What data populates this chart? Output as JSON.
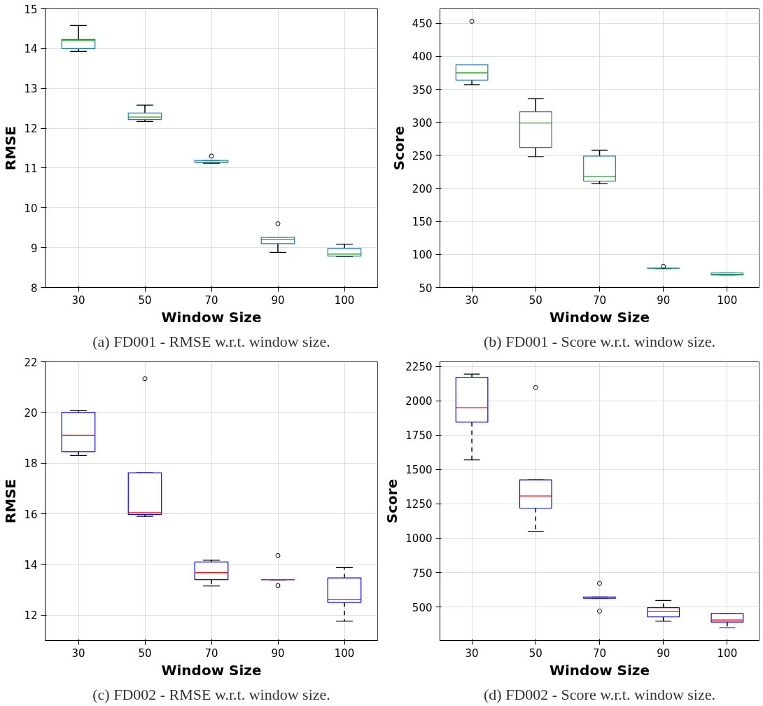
{
  "chart_data": [
    {
      "type": "box",
      "categories": [
        "30",
        "50",
        "70",
        "90",
        "100"
      ],
      "xlabel": "Window Size",
      "ylabel": "RMSE",
      "ylim": [
        8,
        15
      ],
      "yticks": [
        8,
        9,
        10,
        11,
        12,
        13,
        14,
        15
      ],
      "grid": true,
      "line_style": "solid",
      "annotations": [
        "(a) FD001 - RMSE w.r.t. window size."
      ],
      "series": [
        {
          "color": "#1f77b4",
          "boxes": [
            {
              "low": 13.93,
              "q1": 14.0,
              "median": 14.2,
              "q3": 14.23,
              "high": 14.58
            },
            {
              "low": 12.17,
              "q1": 12.22,
              "median": 12.28,
              "q3": 12.38,
              "high": 12.58
            },
            {
              "low": 11.12,
              "q1": 11.14,
              "median": 11.15,
              "q3": 11.19,
              "high": 11.19,
              "outliers": [
                11.3
              ]
            },
            {
              "low": 8.88,
              "q1": 9.1,
              "median": 9.21,
              "q3": 9.26,
              "high": 9.26,
              "outliers": [
                9.6
              ]
            },
            {
              "low": 8.78,
              "q1": 8.79,
              "median": 8.84,
              "q3": 8.98,
              "high": 9.09
            }
          ]
        }
      ]
    },
    {
      "type": "box",
      "categories": [
        "30",
        "50",
        "70",
        "90",
        "100"
      ],
      "xlabel": "Window Size",
      "ylabel": "Score",
      "ylim": [
        50,
        472
      ],
      "yticks": [
        50,
        100,
        150,
        200,
        250,
        300,
        350,
        400,
        450
      ],
      "grid": true,
      "line_style": "solid",
      "annotations": [
        "(b) FD001 - Score w.r.t. window size."
      ],
      "series": [
        {
          "color": "#1f77b4",
          "boxes": [
            {
              "low": 357,
              "q1": 364,
              "median": 375,
              "q3": 387,
              "high": 387,
              "outliers": [
                453
              ]
            },
            {
              "low": 248,
              "q1": 262,
              "median": 299,
              "q3": 316,
              "high": 336
            },
            {
              "low": 207,
              "q1": 211,
              "median": 218,
              "q3": 249,
              "high": 258
            },
            {
              "low": 78.5,
              "q1": 79,
              "median": 79.5,
              "q3": 79.5,
              "high": 79.5,
              "outliers": [
                82
              ]
            },
            {
              "low": 69,
              "q1": 69,
              "median": 70,
              "q3": 72,
              "high": 72
            }
          ]
        }
      ]
    },
    {
      "type": "box",
      "categories": [
        "30",
        "50",
        "70",
        "90",
        "100"
      ],
      "xlabel": "Window Size",
      "ylabel": "RMSE",
      "ylim": [
        11,
        22
      ],
      "yticks": [
        12,
        14,
        16,
        18,
        20,
        22
      ],
      "grid": true,
      "line_style": "dashed",
      "annotations": [
        "(c) FD002 - RMSE w.r.t. window size."
      ],
      "series": [
        {
          "color": "#0000ff",
          "boxes": [
            {
              "low": 18.3,
              "q1": 18.45,
              "median": 19.1,
              "q3": 20.0,
              "high": 20.07
            },
            {
              "low": 15.9,
              "q1": 15.98,
              "median": 16.05,
              "q3": 17.62,
              "high": 17.62,
              "outliers": [
                21.33
              ]
            },
            {
              "low": 13.15,
              "q1": 13.4,
              "median": 13.68,
              "q3": 14.1,
              "high": 14.17
            },
            {
              "low": 13.4,
              "q1": 13.4,
              "median": 13.4,
              "q3": 13.4,
              "high": 13.4,
              "outliers": [
                14.35,
                13.17
              ]
            },
            {
              "low": 11.76,
              "q1": 12.5,
              "median": 12.62,
              "q3": 13.47,
              "high": 13.88
            }
          ]
        }
      ]
    },
    {
      "type": "box",
      "categories": [
        "30",
        "50",
        "70",
        "90",
        "100"
      ],
      "xlabel": "Window Size",
      "ylabel": "Score",
      "ylim": [
        256,
        2284
      ],
      "yticks": [
        500,
        750,
        1000,
        1250,
        1500,
        1750,
        2000,
        2250
      ],
      "grid": true,
      "line_style": "dashed",
      "annotations": [
        "(d) FD002 - Score w.r.t. window size."
      ],
      "series": [
        {
          "color": "#0000ff",
          "boxes": [
            {
              "low": 1570,
              "q1": 1845,
              "median": 1950,
              "q3": 2170,
              "high": 2194
            },
            {
              "low": 1051,
              "q1": 1219,
              "median": 1308,
              "q3": 1425,
              "high": 1425,
              "outliers": [
                2096
              ]
            },
            {
              "low": 563,
              "q1": 563,
              "median": 570,
              "q3": 573,
              "high": 573,
              "outliers": [
                672,
                470
              ]
            },
            {
              "low": 396,
              "q1": 428,
              "median": 468,
              "q3": 495,
              "high": 547
            },
            {
              "low": 349,
              "q1": 390,
              "median": 405,
              "q3": 453,
              "high": 453
            }
          ]
        }
      ]
    }
  ]
}
